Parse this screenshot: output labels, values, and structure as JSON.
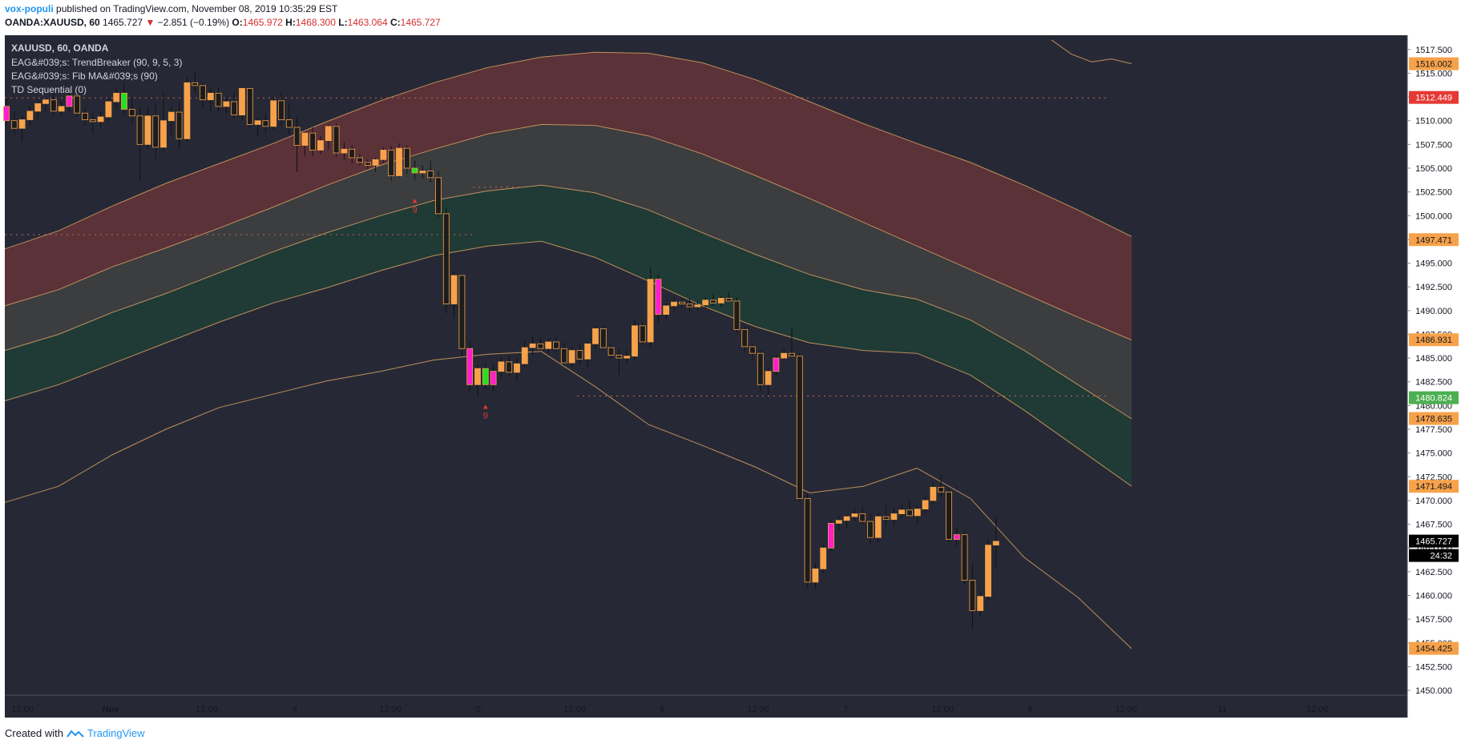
{
  "header": {
    "user": "vox-populi",
    "published_text": "published on TradingView.com, November 08, 2019 10:35:29 EST",
    "symbol": "OANDA:XAUUSD, 60",
    "last": "1465.727",
    "change_arrow": "▼",
    "change": "−2.851 (−0.19%)",
    "o_label": "O:",
    "o": "1465.972",
    "h_label": "H:",
    "h": "1468.300",
    "l_label": "L:",
    "l": "1463.064",
    "c_label": "C:",
    "c": "1465.727"
  },
  "legend": {
    "symbol": "XAUUSD, 60, OANDA",
    "ind1": "EAG&#039;s: TrendBreaker (90, 9, 5, 3)",
    "ind2": "EAG&#039;s: Fib MA&#039;s (90)",
    "ind3": "TD Sequential (0)"
  },
  "footer": {
    "created_with": "Created with",
    "brand": "TradingView"
  },
  "colors": {
    "bg": "#262935",
    "bull": "#f7a24a",
    "bear": "#1c1c1c",
    "td_green": "#22e022",
    "td_magenta": "#ff1dce",
    "band_top": "#5a3238",
    "band_mid": "#3b3d3f",
    "band_low": "#203a35",
    "band_line": "#d9a062"
  },
  "chart_data": {
    "type": "candlestick",
    "title": "XAUUSD, 60, OANDA",
    "ylim": [
      1449.5,
      1519
    ],
    "y_ticks": [
      1450,
      1452.5,
      1455,
      1457.5,
      1460,
      1462.5,
      1465,
      1467.5,
      1470,
      1472.5,
      1475,
      1477.5,
      1480,
      1482.5,
      1485,
      1487.5,
      1490,
      1492.5,
      1495,
      1497.5,
      1500,
      1502.5,
      1505,
      1507.5,
      1510,
      1512.5,
      1515,
      1517.5
    ],
    "x_ticks": [
      "12:00",
      "Nov",
      "12:00",
      "4",
      "12:00",
      "5",
      "12:00",
      "6",
      "12:00",
      "7",
      "12:00",
      "8",
      "12:00",
      "11",
      "12:00"
    ],
    "price_labels": [
      {
        "value": "1516.002",
        "color": "#f7a24a"
      },
      {
        "value": "1512.449",
        "color": "#e53935"
      },
      {
        "value": "1497.471",
        "color": "#f7a24a"
      },
      {
        "value": "1486.931",
        "color": "#f7a24a"
      },
      {
        "value": "1480.824",
        "color": "#4caf50"
      },
      {
        "value": "1478.635",
        "color": "#f7a24a"
      },
      {
        "value": "1471.494",
        "color": "#f7a24a"
      },
      {
        "value": "1465.727",
        "color": "#000000"
      },
      {
        "value": "1454.425",
        "color": "#f7a24a"
      }
    ],
    "countdown": "24:32",
    "td_labels": [
      "9",
      "9"
    ],
    "band_upper": [
      1496.5,
      1498.4,
      1501.0,
      1503.4,
      1505.5,
      1507.6,
      1509.9,
      1512.1,
      1514.0,
      1515.6,
      1516.7,
      1517.2,
      1517.1,
      1516.1,
      1514.3,
      1512.0,
      1509.7,
      1507.6,
      1505.6,
      1503.2,
      1500.6,
      1497.8
    ],
    "band_f1": [
      1490.5,
      1492.2,
      1494.6,
      1496.6,
      1498.7,
      1500.9,
      1503.2,
      1505.3,
      1507.0,
      1508.6,
      1509.6,
      1509.5,
      1508.4,
      1506.5,
      1504.2,
      1501.8,
      1499.3,
      1496.8,
      1494.3,
      1491.8,
      1489.3,
      1486.9
    ],
    "band_mid": [
      1485.8,
      1487.5,
      1489.8,
      1491.8,
      1494.0,
      1496.2,
      1498.2,
      1500.0,
      1501.6,
      1502.6,
      1503.2,
      1502.4,
      1500.6,
      1498.2,
      1495.9,
      1493.8,
      1492.2,
      1491.2,
      1489.0,
      1485.8,
      1482.2,
      1478.6
    ],
    "band_lower": [
      1480.5,
      1482.2,
      1484.4,
      1486.6,
      1488.8,
      1490.8,
      1492.4,
      1494.2,
      1495.8,
      1496.8,
      1497.3,
      1495.6,
      1493.1,
      1490.5,
      1488.3,
      1486.6,
      1485.8,
      1485.5,
      1483.2,
      1479.5,
      1475.5,
      1471.5
    ],
    "outer_lower": [
      1469.8,
      1471.5,
      1474.8,
      1477.5,
      1479.8,
      1481.2,
      1482.6,
      1483.6,
      1484.8,
      1485.4,
      1485.7,
      1482.0,
      1478.0,
      1475.8,
      1473.5,
      1470.8,
      1471.5,
      1473.4,
      1470.2,
      1464.0,
      1459.8,
      1454.4
    ],
    "outer_upper_tail": [
      1518.5,
      1517.0,
      1516.2,
      1516.5,
      1516.0
    ],
    "candles": [
      [
        1511.5,
        1512.4,
        1509.5,
        1510.0
      ],
      [
        1510.0,
        1511.0,
        1508.5,
        1509.2
      ],
      [
        1509.2,
        1510.5,
        1507.8,
        1510.1
      ],
      [
        1510.1,
        1511.5,
        1509.5,
        1511.0
      ],
      [
        1511.0,
        1512.0,
        1510.2,
        1511.8
      ],
      [
        1511.8,
        1512.5,
        1511.0,
        1512.2
      ],
      [
        1512.2,
        1513.0,
        1510.5,
        1511.0
      ],
      [
        1511.0,
        1512.0,
        1510.5,
        1511.5
      ],
      [
        1511.5,
        1513.0,
        1511.0,
        1512.6
      ],
      [
        1512.6,
        1513.2,
        1510.4,
        1510.8
      ],
      [
        1510.8,
        1511.5,
        1509.4,
        1510.1
      ],
      [
        1510.1,
        1510.8,
        1508.6,
        1509.9
      ],
      [
        1509.9,
        1511.0,
        1509.3,
        1510.4
      ],
      [
        1510.4,
        1512.3,
        1510.0,
        1512.0
      ],
      [
        1512.0,
        1513.4,
        1511.2,
        1512.9
      ],
      [
        1512.9,
        1514.0,
        1510.6,
        1511.2
      ],
      [
        1511.2,
        1512.4,
        1509.6,
        1510.5
      ],
      [
        1510.5,
        1511.4,
        1503.7,
        1507.5
      ],
      [
        1507.5,
        1511.5,
        1507.0,
        1510.5
      ],
      [
        1510.5,
        1511.8,
        1506.0,
        1507.2
      ],
      [
        1507.2,
        1513.0,
        1506.8,
        1510.0
      ],
      [
        1510.0,
        1511.5,
        1508.5,
        1510.9
      ],
      [
        1510.9,
        1512.0,
        1507.0,
        1508.1
      ],
      [
        1508.1,
        1514.5,
        1507.8,
        1514.0
      ],
      [
        1514.0,
        1515.2,
        1513.0,
        1513.7
      ],
      [
        1513.7,
        1514.0,
        1511.3,
        1512.2
      ],
      [
        1512.2,
        1513.5,
        1511.0,
        1512.9
      ],
      [
        1512.9,
        1513.5,
        1511.0,
        1511.5
      ],
      [
        1511.5,
        1512.4,
        1510.7,
        1512.0
      ],
      [
        1512.0,
        1513.0,
        1510.2,
        1510.6
      ],
      [
        1510.6,
        1513.5,
        1510.0,
        1513.4
      ],
      [
        1513.4,
        1513.6,
        1509.3,
        1509.6
      ],
      [
        1509.6,
        1510.3,
        1508.4,
        1510.0
      ],
      [
        1510.0,
        1510.8,
        1508.7,
        1509.4
      ],
      [
        1509.4,
        1512.5,
        1509.0,
        1512.1
      ],
      [
        1512.1,
        1513.0,
        1509.5,
        1510.1
      ],
      [
        1510.1,
        1511.8,
        1508.6,
        1509.3
      ],
      [
        1509.3,
        1510.4,
        1504.6,
        1507.4
      ],
      [
        1507.4,
        1508.8,
        1506.3,
        1508.7
      ],
      [
        1508.7,
        1509.3,
        1506.3,
        1506.9
      ],
      [
        1506.9,
        1508.4,
        1506.5,
        1507.9
      ],
      [
        1507.9,
        1509.6,
        1507.0,
        1509.4
      ],
      [
        1509.4,
        1509.7,
        1506.2,
        1506.6
      ],
      [
        1506.6,
        1507.7,
        1505.9,
        1507.0
      ],
      [
        1507.0,
        1507.4,
        1505.5,
        1506.1
      ],
      [
        1506.1,
        1506.5,
        1505.3,
        1505.6
      ],
      [
        1505.6,
        1505.9,
        1504.9,
        1505.3
      ],
      [
        1505.3,
        1506.1,
        1504.6,
        1505.9
      ],
      [
        1505.9,
        1507.2,
        1505.6,
        1506.9
      ],
      [
        1506.9,
        1507.3,
        1503.7,
        1504.2
      ],
      [
        1504.2,
        1507.6,
        1504.0,
        1507.1
      ],
      [
        1507.1,
        1507.4,
        1504.4,
        1505.0
      ],
      [
        1505.0,
        1505.8,
        1503.8,
        1504.5
      ],
      [
        1504.5,
        1505.3,
        1503.9,
        1504.7
      ],
      [
        1504.7,
        1505.8,
        1503.5,
        1504.0
      ],
      [
        1504.0,
        1504.7,
        1499.7,
        1500.2
      ],
      [
        1500.2,
        1500.8,
        1489.7,
        1490.7
      ],
      [
        1490.7,
        1494.2,
        1489.2,
        1493.7
      ],
      [
        1493.7,
        1493.8,
        1485.2,
        1486.0
      ],
      [
        1486.0,
        1486.8,
        1481.5,
        1482.2
      ],
      [
        1482.2,
        1484.3,
        1481.0,
        1483.9
      ],
      [
        1483.9,
        1484.5,
        1481.7,
        1482.2
      ],
      [
        1482.2,
        1484.2,
        1481.5,
        1483.6
      ],
      [
        1483.6,
        1485.0,
        1482.9,
        1484.6
      ],
      [
        1484.6,
        1485.3,
        1483.0,
        1483.5
      ],
      [
        1483.5,
        1485.0,
        1482.5,
        1484.4
      ],
      [
        1484.4,
        1486.8,
        1484.0,
        1486.1
      ],
      [
        1486.1,
        1487.3,
        1485.3,
        1486.5
      ],
      [
        1486.5,
        1487.2,
        1485.8,
        1486.0
      ],
      [
        1486.0,
        1487.0,
        1485.3,
        1486.7
      ],
      [
        1486.7,
        1487.2,
        1485.7,
        1486.0
      ],
      [
        1486.0,
        1486.6,
        1484.2,
        1484.5
      ],
      [
        1484.5,
        1486.2,
        1484.1,
        1485.8
      ],
      [
        1485.8,
        1486.6,
        1484.3,
        1484.9
      ],
      [
        1484.9,
        1486.7,
        1484.0,
        1486.5
      ],
      [
        1486.5,
        1488.4,
        1485.9,
        1488.1
      ],
      [
        1488.1,
        1488.4,
        1485.8,
        1486.1
      ],
      [
        1486.1,
        1486.4,
        1484.9,
        1485.3
      ],
      [
        1485.3,
        1485.9,
        1483.3,
        1485.0
      ],
      [
        1485.0,
        1485.8,
        1484.5,
        1485.2
      ],
      [
        1485.2,
        1489.0,
        1484.8,
        1488.4
      ],
      [
        1488.4,
        1488.8,
        1486.3,
        1486.7
      ],
      [
        1486.7,
        1494.5,
        1486.1,
        1493.3
      ],
      [
        1493.3,
        1493.8,
        1488.8,
        1489.6
      ],
      [
        1489.6,
        1490.8,
        1489.1,
        1490.5
      ],
      [
        1490.5,
        1491.4,
        1490.0,
        1490.9
      ],
      [
        1490.9,
        1491.2,
        1490.2,
        1490.7
      ],
      [
        1490.7,
        1491.3,
        1489.9,
        1490.4
      ],
      [
        1490.4,
        1491.0,
        1490.0,
        1490.6
      ],
      [
        1490.6,
        1491.4,
        1490.2,
        1491.1
      ],
      [
        1491.1,
        1491.8,
        1490.5,
        1490.8
      ],
      [
        1490.8,
        1491.6,
        1490.4,
        1491.3
      ],
      [
        1491.3,
        1491.9,
        1490.9,
        1491.0
      ],
      [
        1491.0,
        1491.4,
        1487.7,
        1488.0
      ],
      [
        1488.0,
        1488.3,
        1485.6,
        1486.2
      ],
      [
        1486.2,
        1486.6,
        1484.7,
        1485.5
      ],
      [
        1485.5,
        1485.8,
        1481.5,
        1482.2
      ],
      [
        1482.2,
        1484.0,
        1481.2,
        1483.6
      ],
      [
        1483.6,
        1485.4,
        1483.1,
        1485.0
      ],
      [
        1485.0,
        1485.9,
        1484.6,
        1485.5
      ],
      [
        1485.5,
        1488.2,
        1484.9,
        1485.2
      ],
      [
        1485.2,
        1485.5,
        1469.9,
        1470.2
      ],
      [
        1470.2,
        1470.6,
        1460.8,
        1461.4
      ],
      [
        1461.4,
        1463.4,
        1460.7,
        1462.8
      ],
      [
        1462.8,
        1465.3,
        1462.4,
        1465.0
      ],
      [
        1465.0,
        1467.9,
        1464.7,
        1467.6
      ],
      [
        1467.6,
        1468.4,
        1466.9,
        1467.9
      ],
      [
        1467.9,
        1468.6,
        1467.0,
        1468.3
      ],
      [
        1468.3,
        1469.1,
        1467.8,
        1468.6
      ],
      [
        1468.6,
        1469.3,
        1467.5,
        1467.8
      ],
      [
        1467.8,
        1468.6,
        1465.3,
        1466.1
      ],
      [
        1466.1,
        1468.7,
        1465.6,
        1468.3
      ],
      [
        1468.3,
        1469.5,
        1467.4,
        1468.0
      ],
      [
        1468.0,
        1469.2,
        1467.3,
        1468.6
      ],
      [
        1468.6,
        1469.6,
        1468.1,
        1469.0
      ],
      [
        1469.0,
        1470.1,
        1468.3,
        1468.4
      ],
      [
        1468.4,
        1469.4,
        1467.6,
        1469.1
      ],
      [
        1469.1,
        1470.4,
        1468.6,
        1470.0
      ],
      [
        1470.0,
        1471.9,
        1469.6,
        1471.4
      ],
      [
        1471.4,
        1472.7,
        1470.4,
        1470.9
      ],
      [
        1470.9,
        1471.3,
        1465.6,
        1465.9
      ],
      [
        1465.9,
        1467.1,
        1465.2,
        1466.4
      ],
      [
        1466.4,
        1466.8,
        1461.2,
        1461.6
      ],
      [
        1461.6,
        1463.3,
        1456.4,
        1458.4
      ],
      [
        1458.4,
        1460.3,
        1457.7,
        1459.9
      ],
      [
        1459.9,
        1466.0,
        1459.4,
        1465.3
      ],
      [
        1465.3,
        1468.3,
        1463.0,
        1465.7
      ]
    ]
  }
}
